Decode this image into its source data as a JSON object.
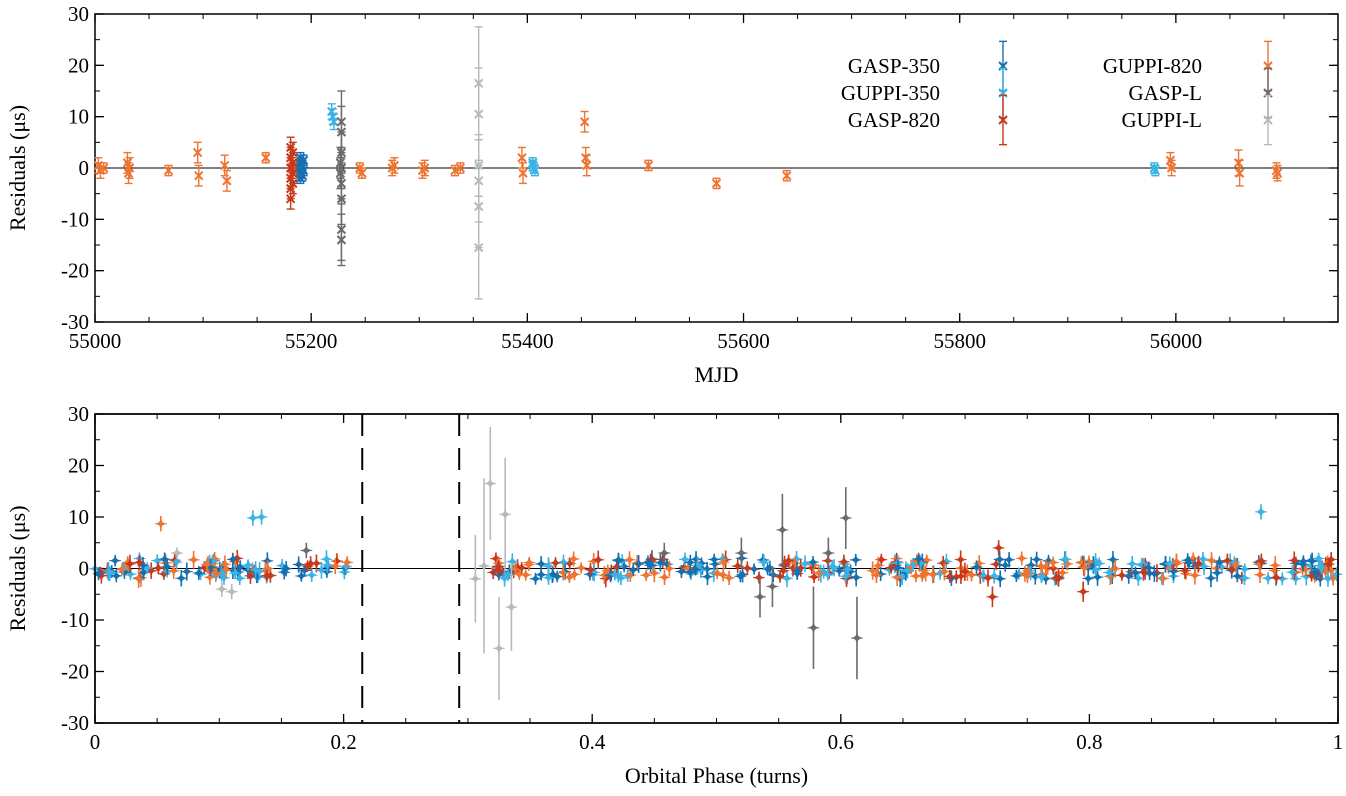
{
  "chart_data": [
    {
      "type": "scatter",
      "xlabel": "MJD",
      "ylabel": "Residuals (μs)",
      "xlim": [
        55000,
        56150
      ],
      "ylim": [
        -30,
        30
      ],
      "xticks": [
        55000,
        55200,
        55400,
        55600,
        55800,
        56000
      ],
      "yticks": [
        -30,
        -20,
        -10,
        0,
        10,
        20,
        30
      ],
      "grid": false,
      "legend_position": "top-right",
      "series": [
        {
          "name": "GASP-350",
          "color": "#1470b0",
          "marker": "x",
          "points": [
            [
              55190,
              -2,
              1
            ],
            [
              55190,
              -1,
              1
            ],
            [
              55190,
              0,
              1
            ],
            [
              55190,
              1,
              1
            ],
            [
              55190,
              2,
              1
            ],
            [
              55192,
              -1.5,
              1
            ],
            [
              55192,
              0.5,
              1
            ],
            [
              55193,
              -0.5,
              1
            ],
            [
              55193,
              1.5,
              1
            ],
            [
              55191,
              0,
              1
            ]
          ]
        },
        {
          "name": "GUPPI-350",
          "color": "#3ab3e6",
          "marker": "x",
          "points": [
            [
              55219,
              11,
              1.5
            ],
            [
              55220,
              10,
              1.5
            ],
            [
              55221,
              9,
              1.5
            ],
            [
              55405,
              1,
              1
            ],
            [
              55406,
              0,
              1
            ],
            [
              55407,
              -0.5,
              1
            ],
            [
              55405,
              0.5,
              1
            ],
            [
              55980,
              0,
              1
            ],
            [
              55981,
              -0.5,
              1
            ]
          ]
        },
        {
          "name": "GASP-820",
          "color": "#c8381a",
          "marker": "x",
          "points": [
            [
              55181,
              -6,
              2
            ],
            [
              55181,
              -4,
              2
            ],
            [
              55181,
              -2,
              2
            ],
            [
              55181,
              0,
              2
            ],
            [
              55181,
              2,
              2
            ],
            [
              55181,
              4,
              2
            ],
            [
              55183,
              -3,
              2
            ],
            [
              55183,
              -1,
              2
            ],
            [
              55183,
              1,
              2
            ],
            [
              55183,
              3,
              2
            ],
            [
              55182,
              0,
              2
            ]
          ]
        },
        {
          "name": "GUPPI-820",
          "color": "#ee7432",
          "marker": "x",
          "points": [
            [
              55003,
              0.5,
              1.5
            ],
            [
              55005,
              -0.5,
              1.5
            ],
            [
              55008,
              0,
              1
            ],
            [
              55030,
              1,
              2
            ],
            [
              55031,
              -1,
              2
            ],
            [
              55032,
              0,
              2
            ],
            [
              55068,
              -0.5,
              1
            ],
            [
              55095,
              3,
              2
            ],
            [
              55096,
              -1.5,
              2
            ],
            [
              55120,
              0.5,
              2
            ],
            [
              55122,
              -2.5,
              2
            ],
            [
              55158,
              2,
              1
            ],
            [
              55245,
              0,
              1
            ],
            [
              55247,
              -1,
              1
            ],
            [
              55275,
              0,
              1.5
            ],
            [
              55277,
              0.5,
              1.5
            ],
            [
              55303,
              -0.5,
              1.5
            ],
            [
              55305,
              0,
              1.5
            ],
            [
              55333,
              -0.5,
              1
            ],
            [
              55338,
              0,
              1
            ],
            [
              55395,
              2,
              2
            ],
            [
              55396,
              -1,
              2
            ],
            [
              55453,
              9,
              2
            ],
            [
              55454,
              2,
              2
            ],
            [
              55455,
              0.5,
              2
            ],
            [
              55512,
              0.5,
              1
            ],
            [
              55575,
              -3,
              1
            ],
            [
              55640,
              -1.5,
              1
            ],
            [
              55995,
              1.5,
              1.5
            ],
            [
              55996,
              0,
              1.5
            ],
            [
              56058,
              1,
              2.5
            ],
            [
              56059,
              -1,
              2.5
            ],
            [
              56093,
              -0.5,
              1.5
            ],
            [
              56094,
              -1,
              1.5
            ]
          ]
        },
        {
          "name": "GASP-L",
          "color": "#6b6b6b",
          "marker": "x",
          "points": [
            [
              55228,
              9,
              6
            ],
            [
              55228,
              7,
              5
            ],
            [
              55228,
              3,
              4
            ],
            [
              55228,
              0,
              4
            ],
            [
              55228,
              -3,
              4
            ],
            [
              55228,
              -6,
              5
            ],
            [
              55228,
              -12,
              6
            ],
            [
              55228,
              -14,
              5
            ],
            [
              55227,
              1,
              3
            ],
            [
              55227,
              -1,
              3
            ]
          ]
        },
        {
          "name": "GUPPI-L",
          "color": "#b9b9b9",
          "marker": "x",
          "points": [
            [
              55355,
              16.5,
              11
            ],
            [
              55355,
              10.5,
              9
            ],
            [
              55355,
              0.5,
              6
            ],
            [
              55355,
              -2.5,
              8
            ],
            [
              55355,
              -7.5,
              8
            ],
            [
              55355,
              -15.5,
              10
            ]
          ]
        }
      ]
    },
    {
      "type": "scatter",
      "xlabel": "Orbital Phase (turns)",
      "ylabel": "Residuals (μs)",
      "xlim": [
        0,
        1
      ],
      "ylim": [
        -30,
        30
      ],
      "xticks": [
        0,
        0.2,
        0.4,
        0.6,
        0.8,
        1
      ],
      "yticks": [
        -30,
        -20,
        -10,
        0,
        10,
        20,
        30
      ],
      "grid": false,
      "vertical_lines": [
        0.215,
        0.293
      ],
      "outliers": [
        {
          "series": "GUPPI-820",
          "x": 0.053,
          "y": 8.7,
          "err": 1.5
        },
        {
          "series": "GUPPI-350",
          "x": 0.127,
          "y": 9.8,
          "err": 1.5
        },
        {
          "series": "GUPPI-350",
          "x": 0.134,
          "y": 10.0,
          "err": 1.5
        },
        {
          "series": "GUPPI-350",
          "x": 0.938,
          "y": 11.0,
          "err": 1.5
        },
        {
          "series": "GUPPI-L",
          "x": 0.306,
          "y": -2.0,
          "err": 8.5
        },
        {
          "series": "GUPPI-L",
          "x": 0.318,
          "y": 16.5,
          "err": 11
        },
        {
          "series": "GUPPI-L",
          "x": 0.313,
          "y": 0.5,
          "err": 17
        },
        {
          "series": "GUPPI-L",
          "x": 0.325,
          "y": -15.5,
          "err": 10
        },
        {
          "series": "GUPPI-L",
          "x": 0.33,
          "y": 10.5,
          "err": 11
        },
        {
          "series": "GUPPI-L",
          "x": 0.335,
          "y": -7.5,
          "err": 8.5
        },
        {
          "series": "GUPPI-L",
          "x": 0.102,
          "y": -4.0,
          "err": 1.5
        },
        {
          "series": "GUPPI-L",
          "x": 0.11,
          "y": -4.5,
          "err": 1.5
        },
        {
          "series": "GUPPI-L",
          "x": 0.066,
          "y": 3.0,
          "err": 1.0
        },
        {
          "series": "GASP-L",
          "x": 0.553,
          "y": 7.5,
          "err": 7
        },
        {
          "series": "GASP-L",
          "x": 0.578,
          "y": -11.5,
          "err": 8
        },
        {
          "series": "GASP-L",
          "x": 0.604,
          "y": 9.8,
          "err": 6
        },
        {
          "series": "GASP-L",
          "x": 0.613,
          "y": -13.5,
          "err": 8
        },
        {
          "series": "GASP-L",
          "x": 0.52,
          "y": 3.0,
          "err": 3
        },
        {
          "series": "GASP-L",
          "x": 0.535,
          "y": -5.5,
          "err": 4
        },
        {
          "series": "GASP-L",
          "x": 0.545,
          "y": -3.5,
          "err": 4
        },
        {
          "series": "GASP-L",
          "x": 0.59,
          "y": 3.0,
          "err": 3
        },
        {
          "series": "GASP-L",
          "x": 0.458,
          "y": 3.0,
          "err": 2
        },
        {
          "series": "GASP-L",
          "x": 0.17,
          "y": 3.5,
          "err": 1.5
        },
        {
          "series": "GASP-820",
          "x": 0.727,
          "y": 4.0,
          "err": 1.5
        },
        {
          "series": "GASP-820",
          "x": 0.722,
          "y": -5.5,
          "err": 2
        },
        {
          "series": "GASP-820",
          "x": 0.795,
          "y": -4.5,
          "err": 2
        }
      ],
      "dense_band": {
        "x_ranges": [
          [
            0,
            0.21
          ],
          [
            0.32,
            1
          ]
        ],
        "y_spread": 4,
        "series": [
          "GASP-350",
          "GUPPI-350",
          "GASP-820",
          "GUPPI-820",
          "GASP-L",
          "GUPPI-L"
        ]
      }
    }
  ]
}
